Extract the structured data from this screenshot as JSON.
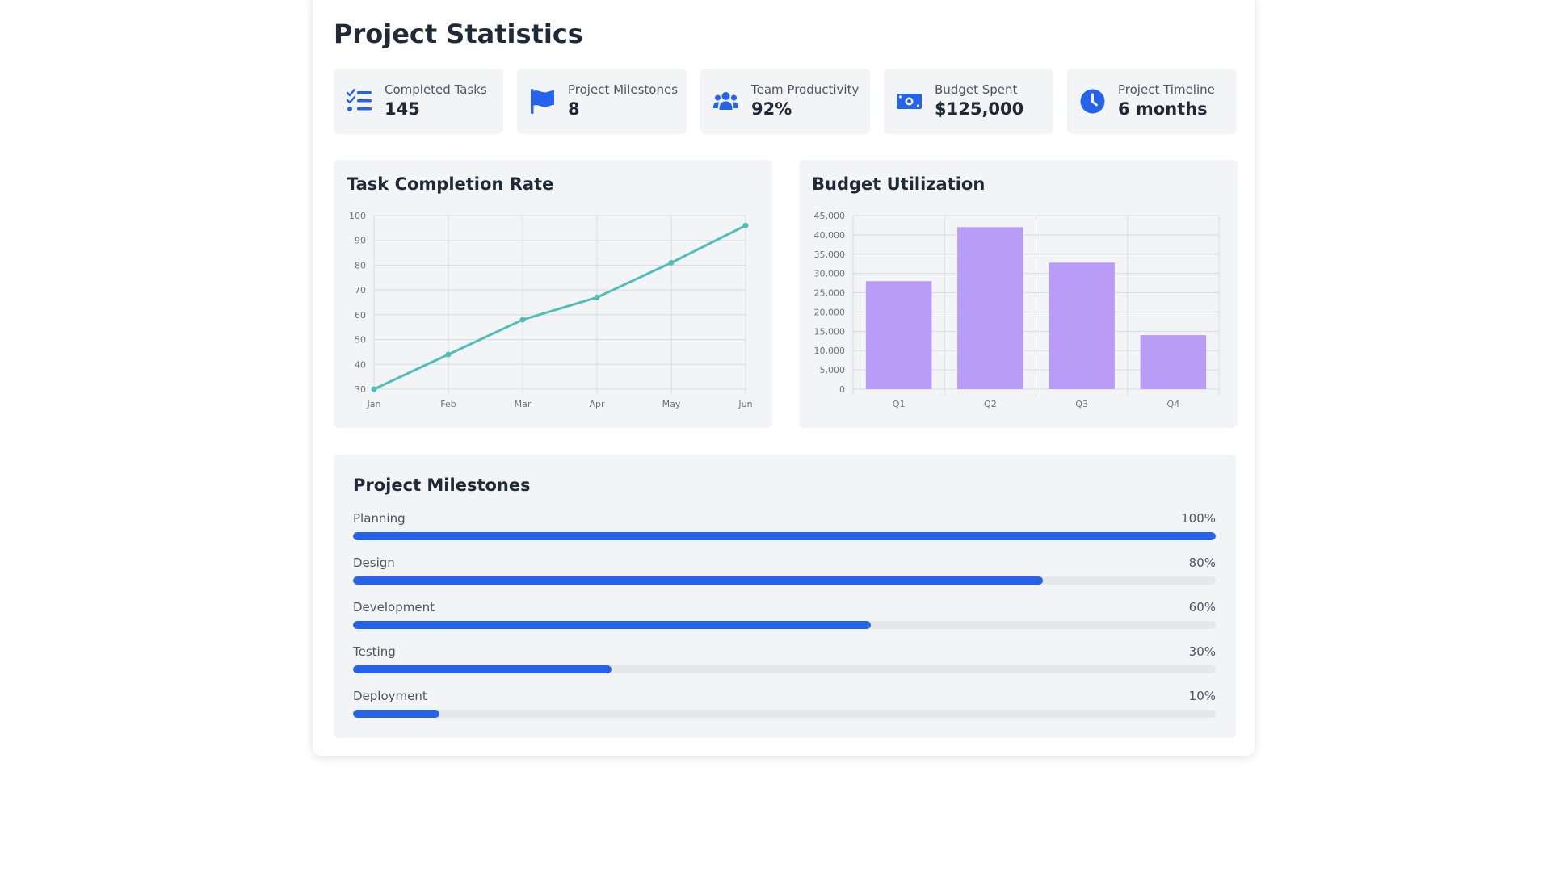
{
  "page": {
    "title": "Project Statistics"
  },
  "colors": {
    "accent": "#2563eb",
    "line": "#4fbdb8",
    "bar": "#b99bf8",
    "panel_bg": "#f3f4f6",
    "track": "#e5e7eb"
  },
  "stats": [
    {
      "icon": "tasks-list-icon",
      "label": "Completed Tasks",
      "value": "145"
    },
    {
      "icon": "flag-icon",
      "label": "Project Milestones",
      "value": "8"
    },
    {
      "icon": "users-icon",
      "label": "Team Productivity",
      "value": "92%"
    },
    {
      "icon": "money-bill-icon",
      "label": "Budget Spent",
      "value": "$125,000"
    },
    {
      "icon": "clock-icon",
      "label": "Project Timeline",
      "value": "6 months"
    }
  ],
  "task_chart": {
    "title": "Task Completion Rate"
  },
  "budget_chart": {
    "title": "Budget Utilization"
  },
  "chart_data": [
    {
      "type": "line",
      "title": "Task Completion Rate",
      "x": [
        "Jan",
        "Feb",
        "Mar",
        "Apr",
        "May",
        "Jun"
      ],
      "series": [
        {
          "values": [
            30,
            44,
            58,
            67,
            81,
            96
          ]
        }
      ],
      "ylim": [
        30,
        100
      ],
      "yticks": [
        30,
        40,
        50,
        60,
        70,
        80,
        90,
        100
      ],
      "grid": true
    },
    {
      "type": "bar",
      "title": "Budget Utilization",
      "categories": [
        "Q1",
        "Q2",
        "Q3",
        "Q4"
      ],
      "values": [
        28000,
        42000,
        32800,
        14000
      ],
      "ylim": [
        0,
        45000
      ],
      "yticks": [
        "0",
        "5,000",
        "10,000",
        "15,000",
        "20,000",
        "25,000",
        "30,000",
        "35,000",
        "40,000",
        "45,000"
      ],
      "grid": true
    }
  ],
  "milestones": {
    "title": "Project Milestones",
    "items": [
      {
        "label": "Planning",
        "percent_label": "100%",
        "progress": 1.0
      },
      {
        "label": "Design",
        "percent_label": "80%",
        "progress": 0.8
      },
      {
        "label": "Development",
        "percent_label": "60%",
        "progress": 0.6
      },
      {
        "label": "Testing",
        "percent_label": "30%",
        "progress": 0.3
      },
      {
        "label": "Deployment",
        "percent_label": "10%",
        "progress": 0.1
      }
    ]
  }
}
